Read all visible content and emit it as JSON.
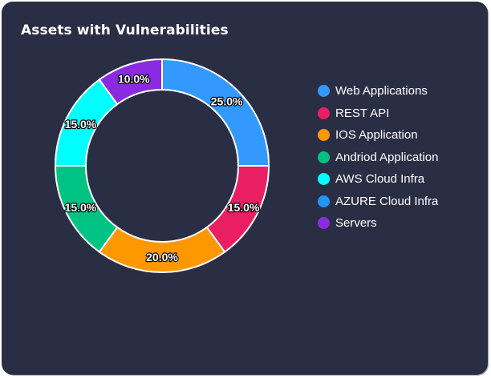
{
  "card": {
    "title": "Assets with Vulnerabilities"
  },
  "chart_data": {
    "type": "pie",
    "variant": "donut",
    "title": "Assets with Vulnerabilities",
    "categories": [
      "Web Applications",
      "REST API",
      "IOS Application",
      "Andriod Application",
      "AWS Cloud Infra",
      "AZURE Cloud Infra",
      "Servers"
    ],
    "values": [
      25,
      15,
      20,
      15,
      15,
      0,
      10
    ],
    "labels": [
      "25.0%",
      "15.0%",
      "20.0%",
      "15.0%",
      "15.0%",
      "",
      "10.0%"
    ],
    "colors": [
      "#3399ff",
      "#e91e63",
      "#ff9800",
      "#00c383",
      "#00ffff",
      "#2196f3",
      "#8a2be2"
    ],
    "legend_position": "right",
    "start": "top, clockwise"
  }
}
